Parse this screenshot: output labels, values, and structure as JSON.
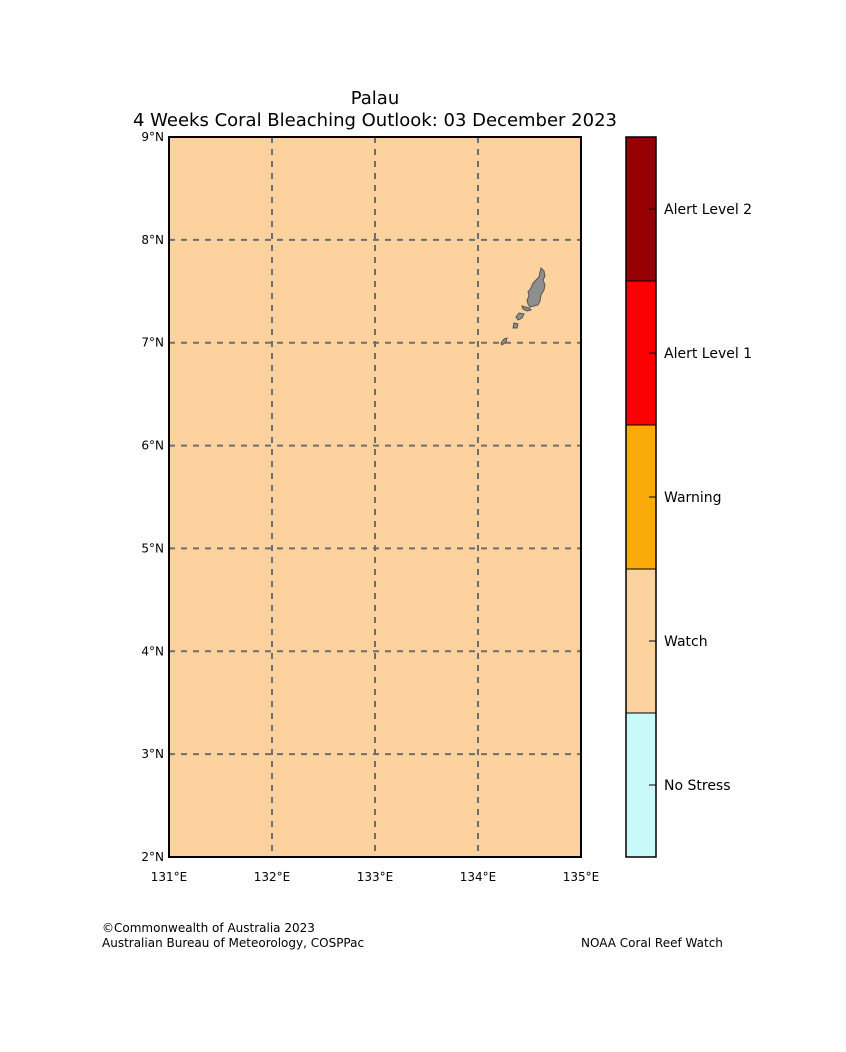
{
  "title": {
    "line1": "Palau",
    "line2": "4 Weeks Coral Bleaching Outlook: 03 December 2023"
  },
  "map": {
    "background_color": "#fdd29f",
    "grid": true,
    "grid_style": "dashed",
    "grid_color": "#6e6e6e",
    "land_color": "#8e8e8e",
    "x_ticks": [
      "131°E",
      "132°E",
      "133°E",
      "134°E",
      "135°E"
    ],
    "y_ticks": [
      "9°N",
      "8°N",
      "7°N",
      "6°N",
      "5°N",
      "4°N",
      "3°N",
      "2°N"
    ]
  },
  "legend": {
    "items": [
      {
        "label": "Alert Level 2",
        "color": "#960000"
      },
      {
        "label": "Alert Level 1",
        "color": "#fa0000"
      },
      {
        "label": "Warning",
        "color": "#faaa0a"
      },
      {
        "label": "Watch",
        "color": "#fdd29f"
      },
      {
        "label": "No Stress",
        "color": "#c8fafa"
      }
    ]
  },
  "footer": {
    "left_line1": "©Commonwealth of Australia 2023",
    "left_line2": "Australian Bureau of Meteorology, COSPPac",
    "right": "NOAA Coral Reef Watch"
  }
}
